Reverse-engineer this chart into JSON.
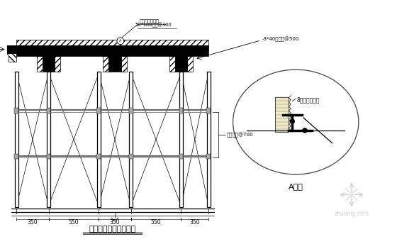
{
  "title": "阶梯教室梁板支撑系统",
  "label_top1": "梁侧模固定节点",
  "label_top2": "50*100木枋@300",
  "label_right1": "-3*40剪刀撑@500",
  "label_right2": "碗扣支柱@700",
  "label_detail": "8孔铝锌管穿孔",
  "label_a": "A大样",
  "dims": [
    "350",
    "550",
    "350",
    "550",
    "350"
  ],
  "bg_color": "#ffffff",
  "line_color": "#000000",
  "wm_text": "zhulong.com"
}
